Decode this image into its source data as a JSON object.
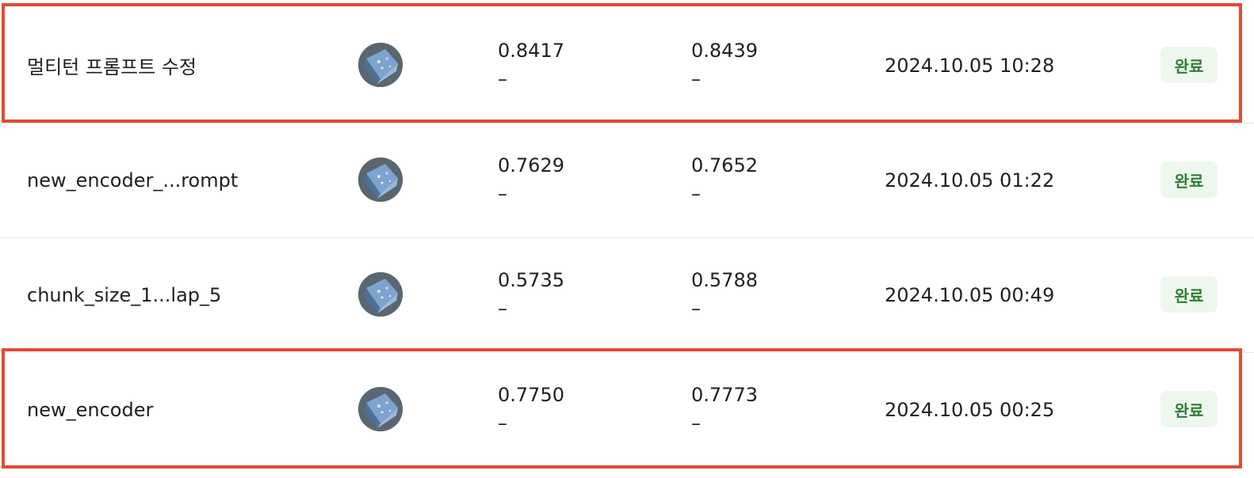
{
  "rows": [
    {
      "name": "멀티턴 프롬프트 수정",
      "avatar_icon": "model-thumbnail-icon",
      "metric1": {
        "value": "0.8417",
        "sub": "–"
      },
      "metric2": {
        "value": "0.8439",
        "sub": "–"
      },
      "date": "2024.10.05 10:28",
      "status": "완료",
      "highlighted": true
    },
    {
      "name": "new_encoder_...rompt",
      "avatar_icon": "model-thumbnail-icon",
      "metric1": {
        "value": "0.7629",
        "sub": "–"
      },
      "metric2": {
        "value": "0.7652",
        "sub": "–"
      },
      "date": "2024.10.05 01:22",
      "status": "완료",
      "highlighted": false
    },
    {
      "name": "chunk_size_1...lap_5",
      "avatar_icon": "model-thumbnail-icon",
      "metric1": {
        "value": "0.5735",
        "sub": "–"
      },
      "metric2": {
        "value": "0.5788",
        "sub": "–"
      },
      "date": "2024.10.05 00:49",
      "status": "완료",
      "highlighted": false
    },
    {
      "name": "new_encoder",
      "avatar_icon": "model-thumbnail-icon",
      "metric1": {
        "value": "0.7750",
        "sub": "–"
      },
      "metric2": {
        "value": "0.7773",
        "sub": "–"
      },
      "date": "2024.10.05 00:25",
      "status": "완료",
      "highlighted": true
    }
  ],
  "colors": {
    "highlight_border": "#e34a33",
    "status_text": "#2e7d32",
    "status_bg": "#eef7ee",
    "divider": "#e6e6e6"
  }
}
